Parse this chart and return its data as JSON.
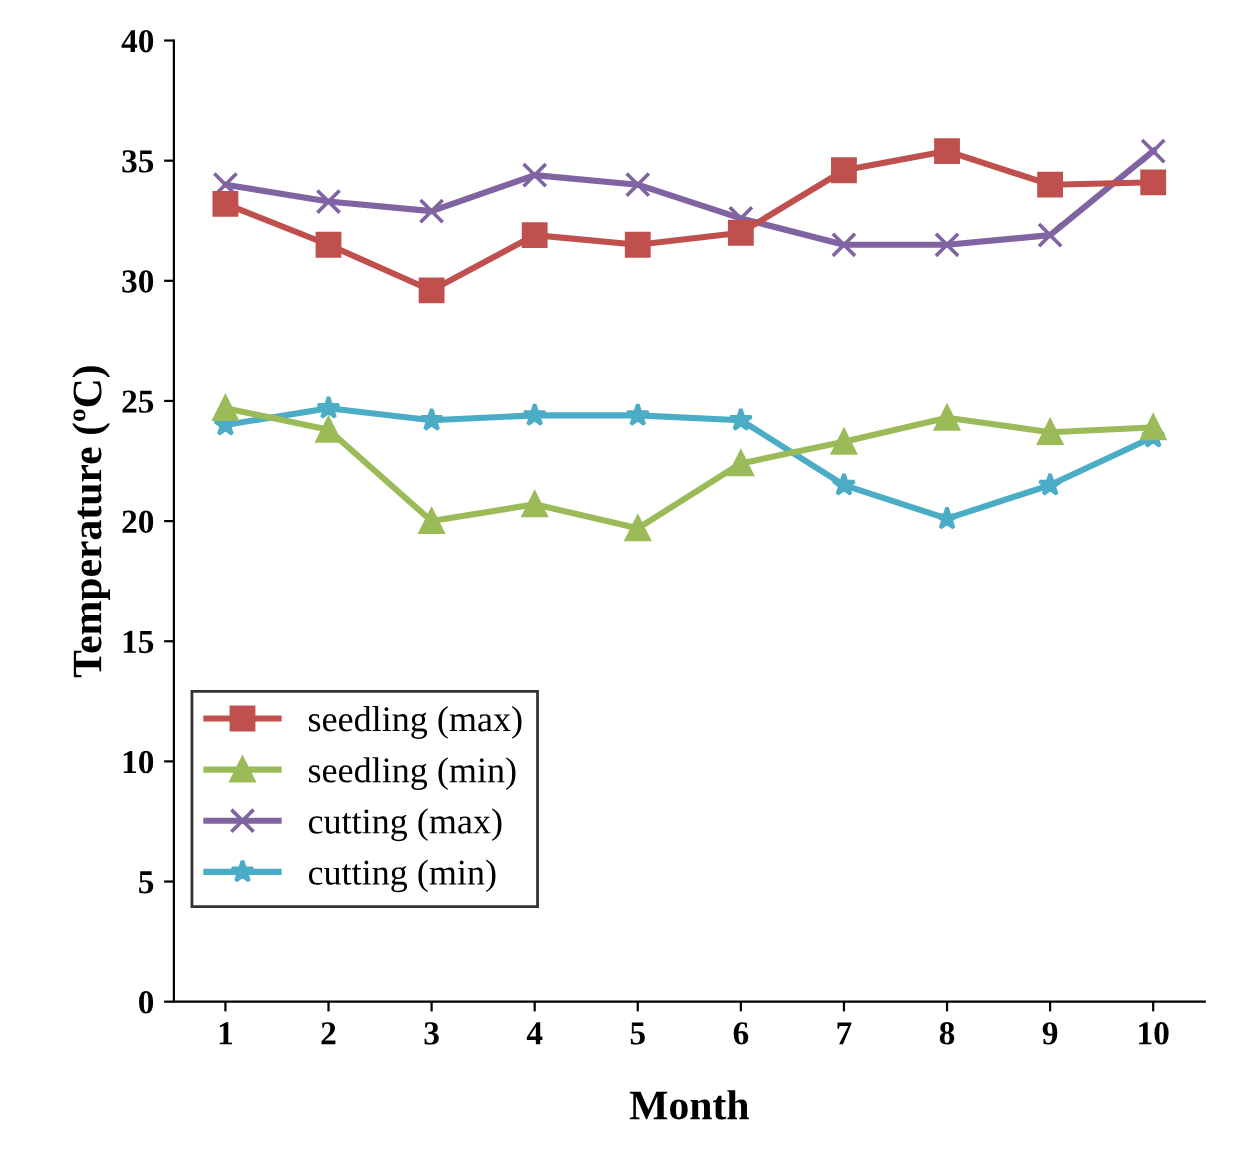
{
  "chart_data": {
    "type": "line",
    "xlabel": "Month",
    "ylabel": "Temperature (ºC)",
    "categories": [
      "1",
      "2",
      "3",
      "4",
      "5",
      "6",
      "7",
      "8",
      "9",
      "10"
    ],
    "ylim": [
      0,
      40
    ],
    "yticks": [
      0,
      5,
      10,
      15,
      20,
      25,
      30,
      35,
      40
    ],
    "grid": false,
    "legend": "lower left",
    "line_style": "solid",
    "series": [
      {
        "name": "seedling (max)",
        "color": "#c0504d",
        "marker": "square",
        "values": [
          33.2,
          31.5,
          29.6,
          31.9,
          31.5,
          32.0,
          34.6,
          35.4,
          34.0,
          34.1
        ]
      },
      {
        "name": "seedling (min)",
        "color": "#9bbb59",
        "marker": "triangle",
        "values": [
          24.7,
          23.8,
          20.0,
          20.7,
          19.7,
          22.4,
          23.3,
          24.3,
          23.7,
          23.9
        ]
      },
      {
        "name": "cutting (max)",
        "color": "#8064a2",
        "marker": "cross",
        "values": [
          34.0,
          33.3,
          32.9,
          34.4,
          34.0,
          32.6,
          31.5,
          31.5,
          31.9,
          35.4
        ]
      },
      {
        "name": "cutting (min)",
        "color": "#4bacc6",
        "marker": "star",
        "values": [
          24.0,
          24.7,
          24.2,
          24.4,
          24.4,
          24.2,
          21.5,
          20.1,
          21.5,
          23.5
        ]
      }
    ]
  }
}
